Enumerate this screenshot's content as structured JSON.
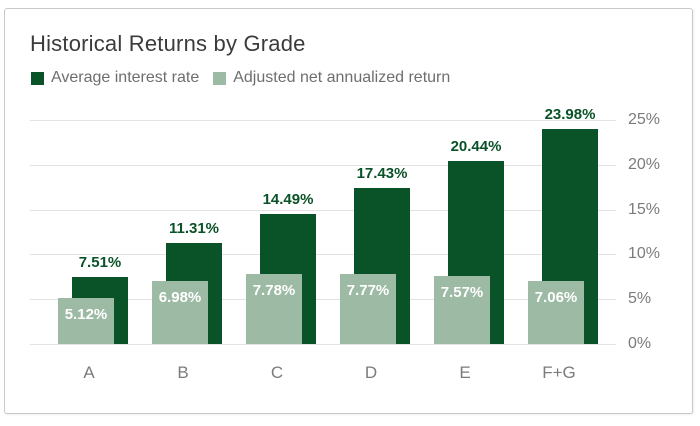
{
  "title": "Historical Returns by Grade",
  "chart_data": {
    "type": "bar",
    "title": "Historical Returns by Grade",
    "categories": [
      "A",
      "B",
      "C",
      "D",
      "E",
      "F+G"
    ],
    "series": [
      {
        "name": "Average interest rate",
        "color": "#0a5228",
        "values": [
          7.51,
          11.31,
          14.49,
          17.43,
          20.44,
          23.98
        ],
        "value_labels": [
          "7.51%",
          "11.31%",
          "14.49%",
          "17.43%",
          "20.44%",
          "23.98%"
        ],
        "label_position": "above",
        "label_color": "#0a5228"
      },
      {
        "name": "Adjusted net annualized return",
        "color": "#9cbaa4",
        "values": [
          5.12,
          6.98,
          7.78,
          7.77,
          7.57,
          7.06
        ],
        "value_labels": [
          "5.12%",
          "6.98%",
          "7.78%",
          "7.77%",
          "7.57%",
          "7.06%"
        ],
        "label_position": "inside",
        "label_color": "#ffffff"
      }
    ],
    "ylim": [
      0,
      25
    ],
    "y_ticks": [
      {
        "value": 0,
        "label": "0%"
      },
      {
        "value": 5,
        "label": "5%"
      },
      {
        "value": 10,
        "label": "10%"
      },
      {
        "value": 15,
        "label": "15%"
      },
      {
        "value": 20,
        "label": "20%"
      },
      {
        "value": 25,
        "label": "25%"
      }
    ],
    "y_axis_side": "right",
    "xlabel": "",
    "ylabel": "",
    "grid": true,
    "legend_position": "top-left"
  },
  "colors": {
    "background": "#ffffff",
    "card_border": "#c9c9c9",
    "grid": "#e3e3e3",
    "title_text": "#3b3b3b",
    "legend_text": "#6e6e6e",
    "axis_text": "#7b7b7b",
    "dark_green": "#0a5228",
    "sage_green": "#9cbaa4"
  }
}
